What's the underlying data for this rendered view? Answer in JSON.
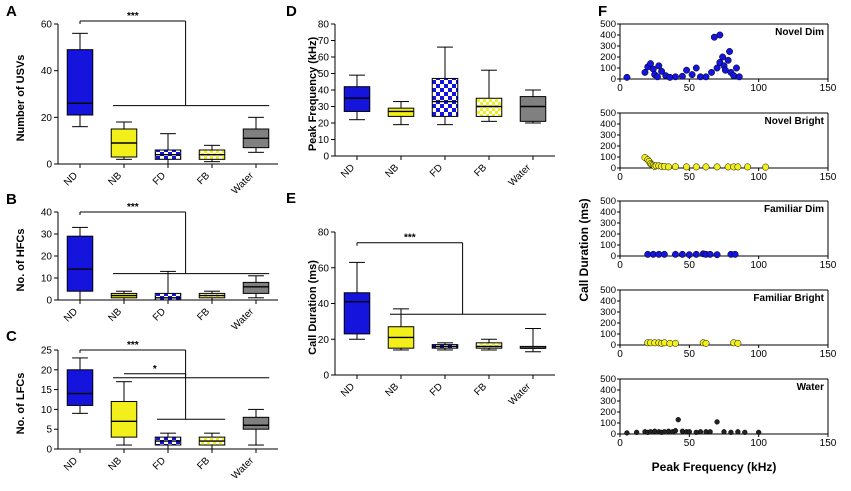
{
  "colors": {
    "ND": "#1414dc",
    "NB": "#f2ef1a",
    "FD": "#1414dc",
    "FB": "#f2ef1a",
    "Water": "#808080",
    "outline": "#000000"
  },
  "chart_data": [
    {
      "id": "A",
      "panel_label": "A",
      "type": "box",
      "ylabel": "Number of USVs",
      "ylim": [
        0,
        60
      ],
      "yticks": [
        0,
        20,
        40,
        60
      ],
      "categories": [
        "ND",
        "NB",
        "FD",
        "FB",
        "Water"
      ],
      "boxes": [
        {
          "min": 16,
          "q1": 21,
          "median": 26,
          "q3": 49,
          "max": 56
        },
        {
          "min": 2,
          "q1": 3,
          "median": 9,
          "q3": 15,
          "max": 18
        },
        {
          "min": 0,
          "q1": 2,
          "median": 4,
          "q3": 6,
          "max": 13
        },
        {
          "min": 1,
          "q1": 2,
          "median": 4,
          "q3": 6,
          "max": 8
        },
        {
          "min": 5,
          "q1": 7,
          "median": 11,
          "q3": 15,
          "max": 20
        }
      ],
      "significance": [
        {
          "label": "***",
          "from": "ND",
          "to": "NB-Water"
        }
      ]
    },
    {
      "id": "B",
      "panel_label": "B",
      "type": "box",
      "ylabel": "No. of HFCs",
      "ylim": [
        0,
        40
      ],
      "yticks": [
        0,
        10,
        20,
        30,
        40
      ],
      "categories": [
        "ND",
        "NB",
        "FD",
        "FB",
        "Water"
      ],
      "boxes": [
        {
          "min": 0,
          "q1": 4,
          "median": 14,
          "q3": 29,
          "max": 33
        },
        {
          "min": 0,
          "q1": 1,
          "median": 2,
          "q3": 3,
          "max": 4
        },
        {
          "min": 0,
          "q1": 0,
          "median": 1,
          "q3": 3,
          "max": 13
        },
        {
          "min": 0,
          "q1": 1,
          "median": 2,
          "q3": 3,
          "max": 4
        },
        {
          "min": 1,
          "q1": 3,
          "median": 6,
          "q3": 8,
          "max": 11
        }
      ],
      "significance": [
        {
          "label": "***",
          "from": "ND",
          "to": "NB-Water"
        }
      ]
    },
    {
      "id": "C",
      "panel_label": "C",
      "type": "box",
      "ylabel": "No. of LFCs",
      "ylim": [
        0,
        25
      ],
      "yticks": [
        0,
        5,
        10,
        15,
        20,
        25
      ],
      "categories": [
        "ND",
        "NB",
        "FD",
        "FB",
        "Water"
      ],
      "boxes": [
        {
          "min": 9,
          "q1": 11,
          "median": 14,
          "q3": 20,
          "max": 23
        },
        {
          "min": 1,
          "q1": 3,
          "median": 7,
          "q3": 12,
          "max": 17
        },
        {
          "min": 0,
          "q1": 1,
          "median": 2,
          "q3": 3,
          "max": 4
        },
        {
          "min": 0,
          "q1": 1,
          "median": 2,
          "q3": 3,
          "max": 4
        },
        {
          "min": 1,
          "q1": 5,
          "median": 6,
          "q3": 8,
          "max": 10
        }
      ],
      "significance": [
        {
          "label": "***",
          "from": "ND",
          "to": "NB-Water"
        },
        {
          "label": "*",
          "from": "NB",
          "to": "FD-FB"
        }
      ]
    },
    {
      "id": "D",
      "panel_label": "D",
      "type": "box",
      "ylabel": "Peak Frequency (kHz)",
      "ylim": [
        0,
        80
      ],
      "yticks": [
        0,
        10,
        20,
        30,
        40,
        50,
        60,
        70,
        80
      ],
      "categories": [
        "ND",
        "NB",
        "FD",
        "FB",
        "Water"
      ],
      "boxes": [
        {
          "min": 22,
          "q1": 27,
          "median": 35,
          "q3": 42,
          "max": 49
        },
        {
          "min": 19,
          "q1": 24,
          "median": 27,
          "q3": 29,
          "max": 33
        },
        {
          "min": 19,
          "q1": 24,
          "median": 33,
          "q3": 47,
          "max": 66
        },
        {
          "min": 21,
          "q1": 24,
          "median": 30,
          "q3": 35,
          "max": 52
        },
        {
          "min": 20,
          "q1": 21,
          "median": 30,
          "q3": 36,
          "max": 40
        }
      ]
    },
    {
      "id": "E",
      "panel_label": "E",
      "type": "box",
      "ylabel": "Call Duration (ms)",
      "ylim": [
        0,
        80
      ],
      "yticks": [
        0,
        20,
        40,
        60,
        80
      ],
      "categories": [
        "ND",
        "NB",
        "FD",
        "FB",
        "Water"
      ],
      "boxes": [
        {
          "min": 20,
          "q1": 23,
          "median": 41,
          "q3": 46,
          "max": 63
        },
        {
          "min": 14,
          "q1": 15,
          "median": 21,
          "q3": 27,
          "max": 37
        },
        {
          "min": 14,
          "q1": 15,
          "median": 16,
          "q3": 17,
          "max": 18
        },
        {
          "min": 14,
          "q1": 15,
          "median": 16,
          "q3": 18,
          "max": 20
        },
        {
          "min": 13,
          "q1": 15,
          "median": 15,
          "q3": 16,
          "max": 26
        }
      ],
      "significance": [
        {
          "label": "***",
          "from": "ND",
          "to": "NB-Water"
        }
      ]
    },
    {
      "id": "F",
      "panel_label": "F",
      "type": "scatter",
      "xlabel": "Peak Frequency (kHz)",
      "ylabel": "Call Duration (ms)",
      "xlim": [
        0,
        150
      ],
      "xticks": [
        0,
        50,
        100,
        150
      ],
      "ylim": [
        0,
        500
      ],
      "yticks": [
        0,
        100,
        200,
        300,
        400,
        500
      ],
      "series": [
        {
          "name": "Novel Dim",
          "color": "#1414dc",
          "x": [
            5,
            18,
            20,
            22,
            24,
            25,
            27,
            28,
            30,
            33,
            36,
            40,
            45,
            48,
            52,
            55,
            58,
            62,
            66,
            68,
            70,
            72,
            74,
            75,
            76,
            78,
            80,
            82,
            84,
            86,
            72,
            79
          ],
          "y": [
            15,
            60,
            110,
            140,
            90,
            40,
            20,
            120,
            70,
            30,
            15,
            20,
            25,
            80,
            40,
            100,
            20,
            20,
            60,
            380,
            100,
            150,
            200,
            120,
            80,
            170,
            60,
            30,
            100,
            20,
            400,
            250
          ]
        },
        {
          "name": "Novel Bright",
          "color": "#f2ef1a",
          "x": [
            18,
            20,
            21,
            22,
            23,
            24,
            25,
            26,
            28,
            30,
            32,
            35,
            40,
            48,
            55,
            62,
            70,
            78,
            82,
            85,
            92,
            105
          ],
          "y": [
            95,
            75,
            60,
            40,
            30,
            25,
            15,
            20,
            20,
            15,
            15,
            10,
            12,
            10,
            10,
            10,
            10,
            10,
            10,
            10,
            10,
            8
          ]
        },
        {
          "name": "Familiar Dim",
          "color": "#1414dc",
          "x": [
            20,
            24,
            28,
            32,
            40,
            45,
            50,
            55,
            60,
            62,
            65,
            70,
            80,
            83
          ],
          "y": [
            15,
            15,
            15,
            15,
            15,
            15,
            12,
            15,
            20,
            15,
            15,
            12,
            15,
            15
          ]
        },
        {
          "name": "Familiar Bright",
          "color": "#f2ef1a",
          "x": [
            20,
            22,
            25,
            28,
            30,
            32,
            36,
            40,
            60,
            62,
            82,
            85
          ],
          "y": [
            20,
            20,
            20,
            20,
            15,
            20,
            15,
            15,
            20,
            15,
            20,
            15
          ]
        },
        {
          "name": "Water",
          "color": "#222222",
          "x": [
            5,
            12,
            18,
            20,
            22,
            25,
            28,
            30,
            32,
            35,
            38,
            40,
            42,
            45,
            48,
            50,
            55,
            58,
            62,
            65,
            70,
            75,
            80,
            85,
            90,
            100
          ],
          "y": [
            10,
            15,
            20,
            15,
            20,
            25,
            20,
            15,
            20,
            25,
            20,
            30,
            130,
            25,
            20,
            20,
            15,
            20,
            20,
            20,
            110,
            20,
            15,
            20,
            15,
            15
          ]
        }
      ]
    }
  ]
}
